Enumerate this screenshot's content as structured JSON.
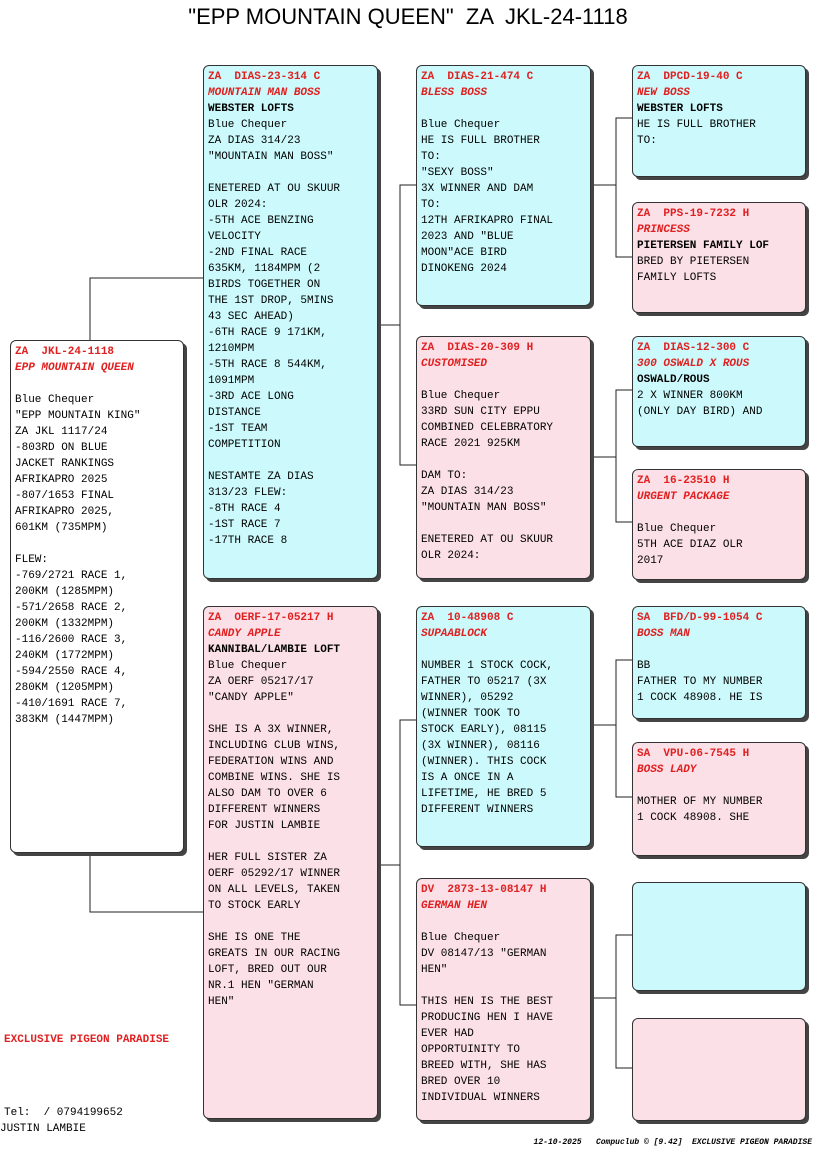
{
  "title": "\"EPP MOUNTAIN QUEEN\"  ZA  JKL-24-1118",
  "subject": {
    "ring": "ZA  JKL-24-1118",
    "name": "EPP MOUNTAIN QUEEN",
    "paragraphs": [
      [
        "Blue Chequer",
        "\"EPP MOUNTAIN KING\"",
        "ZA JKL 1117/24",
        "-803RD ON BLUE",
        "JACKET RANKINGS",
        "AFRIKAPRO 2025",
        "-807/1653 FINAL",
        "AFRIKAPRO 2025,",
        "601KM (735MPM)"
      ],
      [
        "FLEW:",
        "-769/2721 RACE 1,",
        "200KM (1285MPM)",
        "-571/2658 RACE 2,",
        "200KM (1332MPM)",
        "-116/2600 RACE 3,",
        "240KM (1772MPM)",
        "-594/2550 RACE 4,",
        "280KM (1205MPM)",
        "-410/1691 RACE 7,",
        "383KM (1447MPM)"
      ]
    ]
  },
  "parents": [
    {
      "ring": "ZA  DIAS-23-314 C",
      "name": "MOUNTAIN MAN BOSS",
      "owner": "WEBSTER LOFTS",
      "paragraphs": [
        [
          "Blue Chequer",
          "ZA DIAS 314/23",
          "\"MOUNTAIN MAN BOSS\""
        ],
        [
          "ENETERED AT OU SKUUR",
          "OLR 2024:",
          "-5TH ACE BENZING",
          "VELOCITY",
          "-2ND FINAL RACE",
          "635KM, 1184MPM (2",
          "BIRDS TOGETHER ON",
          "THE 1ST DROP, 5MINS",
          "43 SEC AHEAD)",
          "-6TH RACE 9 171KM,",
          "1210MPM",
          "-5TH RACE 8 544KM,",
          "1091MPM",
          "-3RD ACE LONG",
          "DISTANCE",
          "-1ST TEAM",
          "COMPETITION"
        ],
        [
          "NESTAMTE ZA DIAS",
          "313/23 FLEW:",
          "-8TH RACE 4",
          "-1ST RACE 7",
          "-17TH RACE 8"
        ]
      ]
    },
    {
      "ring": "ZA  OERF-17-05217 H",
      "name": "CANDY APPLE",
      "owner": "KANNIBAL/LAMBIE LOFT",
      "paragraphs": [
        [
          "Blue Chequer",
          "ZA OERF 05217/17",
          "\"CANDY APPLE\""
        ],
        [
          "SHE IS A 3X WINNER,",
          "INCLUDING CLUB WINS,",
          "FEDERATION WINS AND",
          "COMBINE WINS. SHE IS",
          "ALSO DAM TO OVER 6",
          "DIFFERENT WINNERS",
          "FOR JUSTIN LAMBIE"
        ],
        [
          "HER FULL SISTER ZA",
          "OERF 05292/17 WINNER",
          "ON ALL LEVELS, TAKEN",
          "TO STOCK EARLY"
        ],
        [
          "SHE IS ONE THE",
          "GREATS IN OUR RACING",
          "LOFT, BRED OUT OUR",
          "NR.1 HEN \"GERMAN",
          "HEN\""
        ]
      ]
    }
  ],
  "grandparents": [
    {
      "ring": "ZA  DIAS-21-474 C",
      "name": "BLESS BOSS",
      "paragraphs": [
        [
          "Blue Chequer",
          "HE IS FULL BROTHER",
          "TO:",
          "\"SEXY BOSS\"",
          "3X WINNER AND DAM",
          "TO:",
          "12TH AFRIKAPRO FINAL",
          "2023 AND \"BLUE",
          "MOON\"ACE BIRD",
          "DINOKENG 2024"
        ]
      ]
    },
    {
      "ring": "ZA  DIAS-20-309 H",
      "name": "CUSTOMISED",
      "paragraphs": [
        [
          "Blue Chequer",
          "33RD SUN CITY EPPU",
          "COMBINED CELEBRATORY",
          "RACE 2021 925KM"
        ],
        [
          "DAM TO:",
          "ZA DIAS 314/23",
          "\"MOUNTAIN MAN BOSS\""
        ],
        [
          "ENETERED AT OU SKUUR",
          "OLR 2024:"
        ]
      ]
    },
    {
      "ring": "ZA  10-48908 C",
      "name": "SUPAABLOCK",
      "paragraphs": [
        [
          "NUMBER 1 STOCK COCK,",
          "FATHER TO 05217 (3X",
          "WINNER), 05292",
          "(WINNER TOOK TO",
          "STOCK EARLY), 08115",
          "(3X WINNER), 08116",
          "(WINNER). THIS COCK",
          "IS A ONCE IN A",
          "LIFETIME, HE BRED 5",
          "DIFFERENT WINNERS"
        ]
      ]
    },
    {
      "ring": "DV  2873-13-08147 H",
      "name": "GERMAN HEN",
      "paragraphs": [
        [
          "Blue Chequer",
          "DV 08147/13 \"GERMAN",
          "HEN\""
        ],
        [
          "THIS HEN IS THE BEST",
          "PRODUCING HEN I HAVE",
          "EVER HAD",
          "OPPORTUINITY TO",
          "BREED WITH, SHE HAS",
          "BRED OVER 10",
          "INDIVIDUAL WINNERS"
        ]
      ]
    }
  ],
  "great_grandparents": [
    {
      "ring": "ZA  DPCD-19-40 C",
      "name": "NEW BOSS",
      "owner": "WEBSTER LOFTS",
      "paragraphs": [
        [
          "HE IS FULL BROTHER",
          "TO:"
        ]
      ]
    },
    {
      "ring": "ZA  PPS-19-7232 H",
      "name": "PRINCESS",
      "owner": "PIETERSEN FAMILY LOF",
      "paragraphs": [
        [
          "BRED BY PIETERSEN",
          "FAMILY LOFTS"
        ]
      ]
    },
    {
      "ring": "ZA  DIAS-12-300 C",
      "name": "300 OSWALD X ROUS",
      "owner": "OSWALD/ROUS",
      "paragraphs": [
        [
          "2 X WINNER 800KM",
          "(ONLY DAY BIRD) AND"
        ]
      ]
    },
    {
      "ring": "ZA  16-23510 H",
      "name": "URGENT PACKAGE",
      "paragraphs": [
        [
          "Blue Chequer",
          "5TH ACE DIAZ OLR",
          "2017"
        ]
      ]
    },
    {
      "ring": "SA  BFD/D-99-1054 C",
      "name": "BOSS MAN",
      "paragraphs": [
        [
          "BB",
          "FATHER TO MY NUMBER",
          "1 COCK 48908. HE IS"
        ]
      ]
    },
    {
      "ring": "SA  VPU-06-7545 H",
      "name": "BOSS LADY",
      "paragraphs": [
        [
          "MOTHER OF MY NUMBER",
          "1 COCK 48908. SHE"
        ]
      ]
    },
    {},
    {}
  ],
  "footer": {
    "loft": "EXCLUSIVE PIGEON PARADISE",
    "tel": "Tel:  / 0794199652",
    "owner": "JUSTIN LAMBIE",
    "stamp": "12-10-2025   Compuclub © [9.42]  EXCLUSIVE PIGEON PARADISE"
  }
}
